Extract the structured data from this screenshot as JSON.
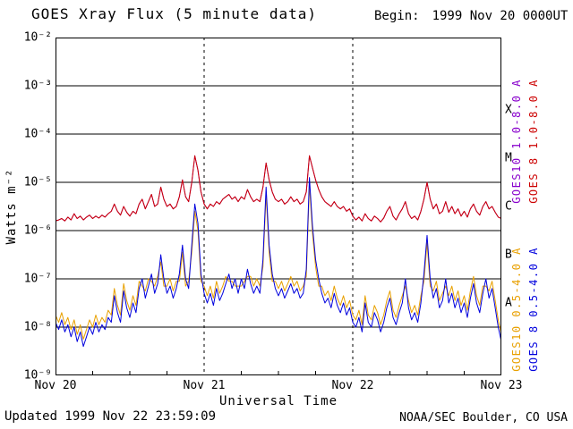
{
  "header": {
    "title": "GOES Xray Flux (5 minute data)",
    "begin_label": "Begin:",
    "begin_value": "1999 Nov 20 0000UT"
  },
  "footer": {
    "updated": "Updated 1999 Nov 22 23:59:09",
    "credit": "NOAA/SEC Boulder, CO USA"
  },
  "chart_data": {
    "type": "line",
    "title": "GOES Xray Flux (5 minute data)",
    "xlabel": "Universal Time",
    "ylabel": "Watts m⁻²",
    "y_scale": "log10",
    "y_units_watts_per_m2": true,
    "y_range_exponents": [
      -9,
      -2
    ],
    "y_tick_labels": [
      "10⁻²",
      "10⁻³",
      "10⁻⁴",
      "10⁻⁵",
      "10⁻⁶",
      "10⁻⁷",
      "10⁻⁸",
      "10⁻⁹"
    ],
    "x_range_hours": [
      0,
      72
    ],
    "x_step_hours": 0.5,
    "x_tick_labels": [
      "Nov 20",
      "Nov 21",
      "Nov 22",
      "Nov 23"
    ],
    "flare_class_labels": [
      "X",
      "M",
      "C",
      "B",
      "A"
    ],
    "grid": {
      "horizontal_decade_lines": true,
      "dashed_day_boundaries_hours": [
        24,
        48
      ]
    },
    "series": [
      {
        "name": "GOES10 1.0-8.0 A",
        "color": "#8800cc",
        "log10_values": [
          -5.8,
          -5.78,
          -5.75,
          -5.8,
          -5.72,
          -5.78,
          -5.65,
          -5.75,
          -5.7,
          -5.78,
          -5.72,
          -5.68,
          -5.75,
          -5.7,
          -5.74,
          -5.68,
          -5.72,
          -5.65,
          -5.6,
          -5.45,
          -5.6,
          -5.68,
          -5.5,
          -5.62,
          -5.7,
          -5.6,
          -5.65,
          -5.45,
          -5.35,
          -5.55,
          -5.4,
          -5.25,
          -5.5,
          -5.45,
          -5.1,
          -5.35,
          -5.5,
          -5.45,
          -5.55,
          -5.5,
          -5.3,
          -4.95,
          -5.3,
          -5.4,
          -5.0,
          -4.45,
          -4.75,
          -5.2,
          -5.45,
          -5.55,
          -5.45,
          -5.5,
          -5.4,
          -5.45,
          -5.35,
          -5.3,
          -5.25,
          -5.35,
          -5.3,
          -5.4,
          -5.3,
          -5.35,
          -5.15,
          -5.3,
          -5.4,
          -5.35,
          -5.4,
          -5.1,
          -4.6,
          -4.95,
          -5.2,
          -5.35,
          -5.4,
          -5.35,
          -5.45,
          -5.4,
          -5.3,
          -5.4,
          -5.35,
          -5.45,
          -5.4,
          -5.2,
          -4.45,
          -4.7,
          -4.95,
          -5.15,
          -5.3,
          -5.4,
          -5.45,
          -5.5,
          -5.4,
          -5.5,
          -5.55,
          -5.5,
          -5.6,
          -5.55,
          -5.7,
          -5.78,
          -5.72,
          -5.8,
          -5.65,
          -5.75,
          -5.8,
          -5.7,
          -5.75,
          -5.82,
          -5.74,
          -5.6,
          -5.5,
          -5.7,
          -5.78,
          -5.65,
          -5.55,
          -5.4,
          -5.65,
          -5.75,
          -5.7,
          -5.78,
          -5.6,
          -5.35,
          -5.0,
          -5.35,
          -5.55,
          -5.45,
          -5.65,
          -5.6,
          -5.4,
          -5.62,
          -5.5,
          -5.65,
          -5.55,
          -5.7,
          -5.6,
          -5.72,
          -5.55,
          -5.45,
          -5.6,
          -5.68,
          -5.5,
          -5.4,
          -5.55,
          -5.5,
          -5.62,
          -5.72,
          -5.75
        ]
      },
      {
        "name": "GOES 8 1.0-8.0 A",
        "color": "#cc0000",
        "log10_values": [
          -5.8,
          -5.78,
          -5.75,
          -5.8,
          -5.72,
          -5.78,
          -5.65,
          -5.75,
          -5.7,
          -5.78,
          -5.72,
          -5.68,
          -5.75,
          -5.7,
          -5.74,
          -5.68,
          -5.72,
          -5.65,
          -5.6,
          -5.45,
          -5.6,
          -5.68,
          -5.5,
          -5.62,
          -5.7,
          -5.6,
          -5.65,
          -5.45,
          -5.35,
          -5.55,
          -5.4,
          -5.25,
          -5.5,
          -5.45,
          -5.1,
          -5.35,
          -5.5,
          -5.45,
          -5.55,
          -5.5,
          -5.3,
          -4.95,
          -5.3,
          -5.4,
          -5.0,
          -4.45,
          -4.75,
          -5.2,
          -5.45,
          -5.55,
          -5.45,
          -5.5,
          -5.4,
          -5.45,
          -5.35,
          -5.3,
          -5.25,
          -5.35,
          -5.3,
          -5.4,
          -5.3,
          -5.35,
          -5.15,
          -5.3,
          -5.4,
          -5.35,
          -5.4,
          -5.1,
          -4.6,
          -4.95,
          -5.2,
          -5.35,
          -5.4,
          -5.35,
          -5.45,
          -5.4,
          -5.3,
          -5.4,
          -5.35,
          -5.45,
          -5.4,
          -5.2,
          -4.45,
          -4.7,
          -4.95,
          -5.15,
          -5.3,
          -5.4,
          -5.45,
          -5.5,
          -5.4,
          -5.5,
          -5.55,
          -5.5,
          -5.6,
          -5.55,
          -5.7,
          -5.78,
          -5.72,
          -5.8,
          -5.65,
          -5.75,
          -5.8,
          -5.7,
          -5.75,
          -5.82,
          -5.74,
          -5.6,
          -5.5,
          -5.7,
          -5.78,
          -5.65,
          -5.55,
          -5.4,
          -5.65,
          -5.75,
          -5.7,
          -5.78,
          -5.6,
          -5.35,
          -5.0,
          -5.35,
          -5.55,
          -5.45,
          -5.65,
          -5.6,
          -5.4,
          -5.62,
          -5.5,
          -5.65,
          -5.55,
          -5.7,
          -5.6,
          -5.72,
          -5.55,
          -5.45,
          -5.6,
          -5.68,
          -5.5,
          -5.4,
          -5.55,
          -5.5,
          -5.62,
          -5.72,
          -5.75
        ]
      },
      {
        "name": "GOES10 0.5-4.0 A",
        "color": "#e8a000",
        "log10_values": [
          -7.75,
          -7.9,
          -7.7,
          -7.95,
          -7.8,
          -8.05,
          -7.85,
          -8.15,
          -7.95,
          -8.25,
          -8.05,
          -7.85,
          -8.0,
          -7.75,
          -7.95,
          -7.8,
          -7.9,
          -7.65,
          -7.75,
          -7.2,
          -7.55,
          -7.75,
          -7.1,
          -7.45,
          -7.65,
          -7.35,
          -7.55,
          -7.05,
          -7.15,
          -7.25,
          -7.0,
          -7.05,
          -7.15,
          -6.95,
          -6.65,
          -7.15,
          -7.15,
          -7.0,
          -7.25,
          -7.05,
          -7.05,
          -6.45,
          -7.15,
          -7.05,
          -6.45,
          -5.6,
          -6.0,
          -7.05,
          -7.15,
          -7.35,
          -7.15,
          -7.4,
          -7.05,
          -7.3,
          -7.15,
          -6.95,
          -7.05,
          -7.05,
          -7.15,
          -7.15,
          -7.15,
          -7.05,
          -6.95,
          -6.95,
          -7.15,
          -7.0,
          -7.15,
          -6.75,
          -5.25,
          -6.45,
          -7.05,
          -7.05,
          -7.2,
          -7.05,
          -7.25,
          -7.1,
          -6.95,
          -7.15,
          -7.05,
          -7.25,
          -7.15,
          -6.95,
          -5.05,
          -6.05,
          -6.75,
          -7.15,
          -7.15,
          -7.35,
          -7.25,
          -7.45,
          -7.15,
          -7.4,
          -7.55,
          -7.35,
          -7.6,
          -7.45,
          -7.75,
          -7.85,
          -7.65,
          -7.95,
          -7.35,
          -7.75,
          -7.85,
          -7.55,
          -7.7,
          -7.95,
          -7.75,
          -7.45,
          -7.25,
          -7.65,
          -7.8,
          -7.55,
          -7.35,
          -7.15,
          -7.45,
          -7.7,
          -7.55,
          -7.75,
          -7.35,
          -7.05,
          -6.25,
          -7.15,
          -7.25,
          -7.05,
          -7.45,
          -7.3,
          -7.15,
          -7.35,
          -7.15,
          -7.45,
          -7.25,
          -7.55,
          -7.35,
          -7.65,
          -7.25,
          -6.95,
          -7.35,
          -7.55,
          -7.15,
          -7.15,
          -7.25,
          -7.05,
          -7.45,
          -7.85,
          -8.15
        ]
      },
      {
        "name": "GOES 8 0.5-4.0 A",
        "color": "#0000dd",
        "log10_values": [
          -7.9,
          -8.05,
          -7.85,
          -8.1,
          -7.95,
          -8.2,
          -8.0,
          -8.3,
          -8.1,
          -8.4,
          -8.2,
          -8.0,
          -8.15,
          -7.9,
          -8.1,
          -7.95,
          -8.05,
          -7.8,
          -7.9,
          -7.35,
          -7.7,
          -7.9,
          -7.25,
          -7.6,
          -7.8,
          -7.5,
          -7.7,
          -7.2,
          -7.0,
          -7.4,
          -7.15,
          -6.9,
          -7.3,
          -7.1,
          -6.5,
          -7.0,
          -7.3,
          -7.15,
          -7.4,
          -7.2,
          -6.9,
          -6.3,
          -7.0,
          -7.2,
          -6.3,
          -5.45,
          -5.85,
          -6.9,
          -7.3,
          -7.5,
          -7.3,
          -7.55,
          -7.2,
          -7.45,
          -7.3,
          -7.1,
          -6.9,
          -7.2,
          -7.0,
          -7.3,
          -7.0,
          -7.2,
          -6.8,
          -7.1,
          -7.3,
          -7.15,
          -7.3,
          -6.6,
          -5.1,
          -6.3,
          -6.9,
          -7.2,
          -7.35,
          -7.2,
          -7.4,
          -7.25,
          -7.1,
          -7.3,
          -7.2,
          -7.4,
          -7.3,
          -6.8,
          -4.9,
          -5.9,
          -6.6,
          -7.0,
          -7.3,
          -7.5,
          -7.4,
          -7.6,
          -7.3,
          -7.55,
          -7.7,
          -7.5,
          -7.75,
          -7.6,
          -7.9,
          -8.0,
          -7.8,
          -8.1,
          -7.5,
          -7.9,
          -8.0,
          -7.7,
          -7.85,
          -8.1,
          -7.9,
          -7.6,
          -7.4,
          -7.8,
          -7.95,
          -7.7,
          -7.5,
          -7.0,
          -7.6,
          -7.85,
          -7.7,
          -7.9,
          -7.5,
          -6.9,
          -6.1,
          -7.0,
          -7.4,
          -7.2,
          -7.6,
          -7.45,
          -7.0,
          -7.5,
          -7.3,
          -7.6,
          -7.4,
          -7.7,
          -7.5,
          -7.8,
          -7.4,
          -7.1,
          -7.5,
          -7.7,
          -7.3,
          -7.0,
          -7.4,
          -7.2,
          -7.6,
          -8.0,
          -8.3
        ]
      }
    ]
  }
}
